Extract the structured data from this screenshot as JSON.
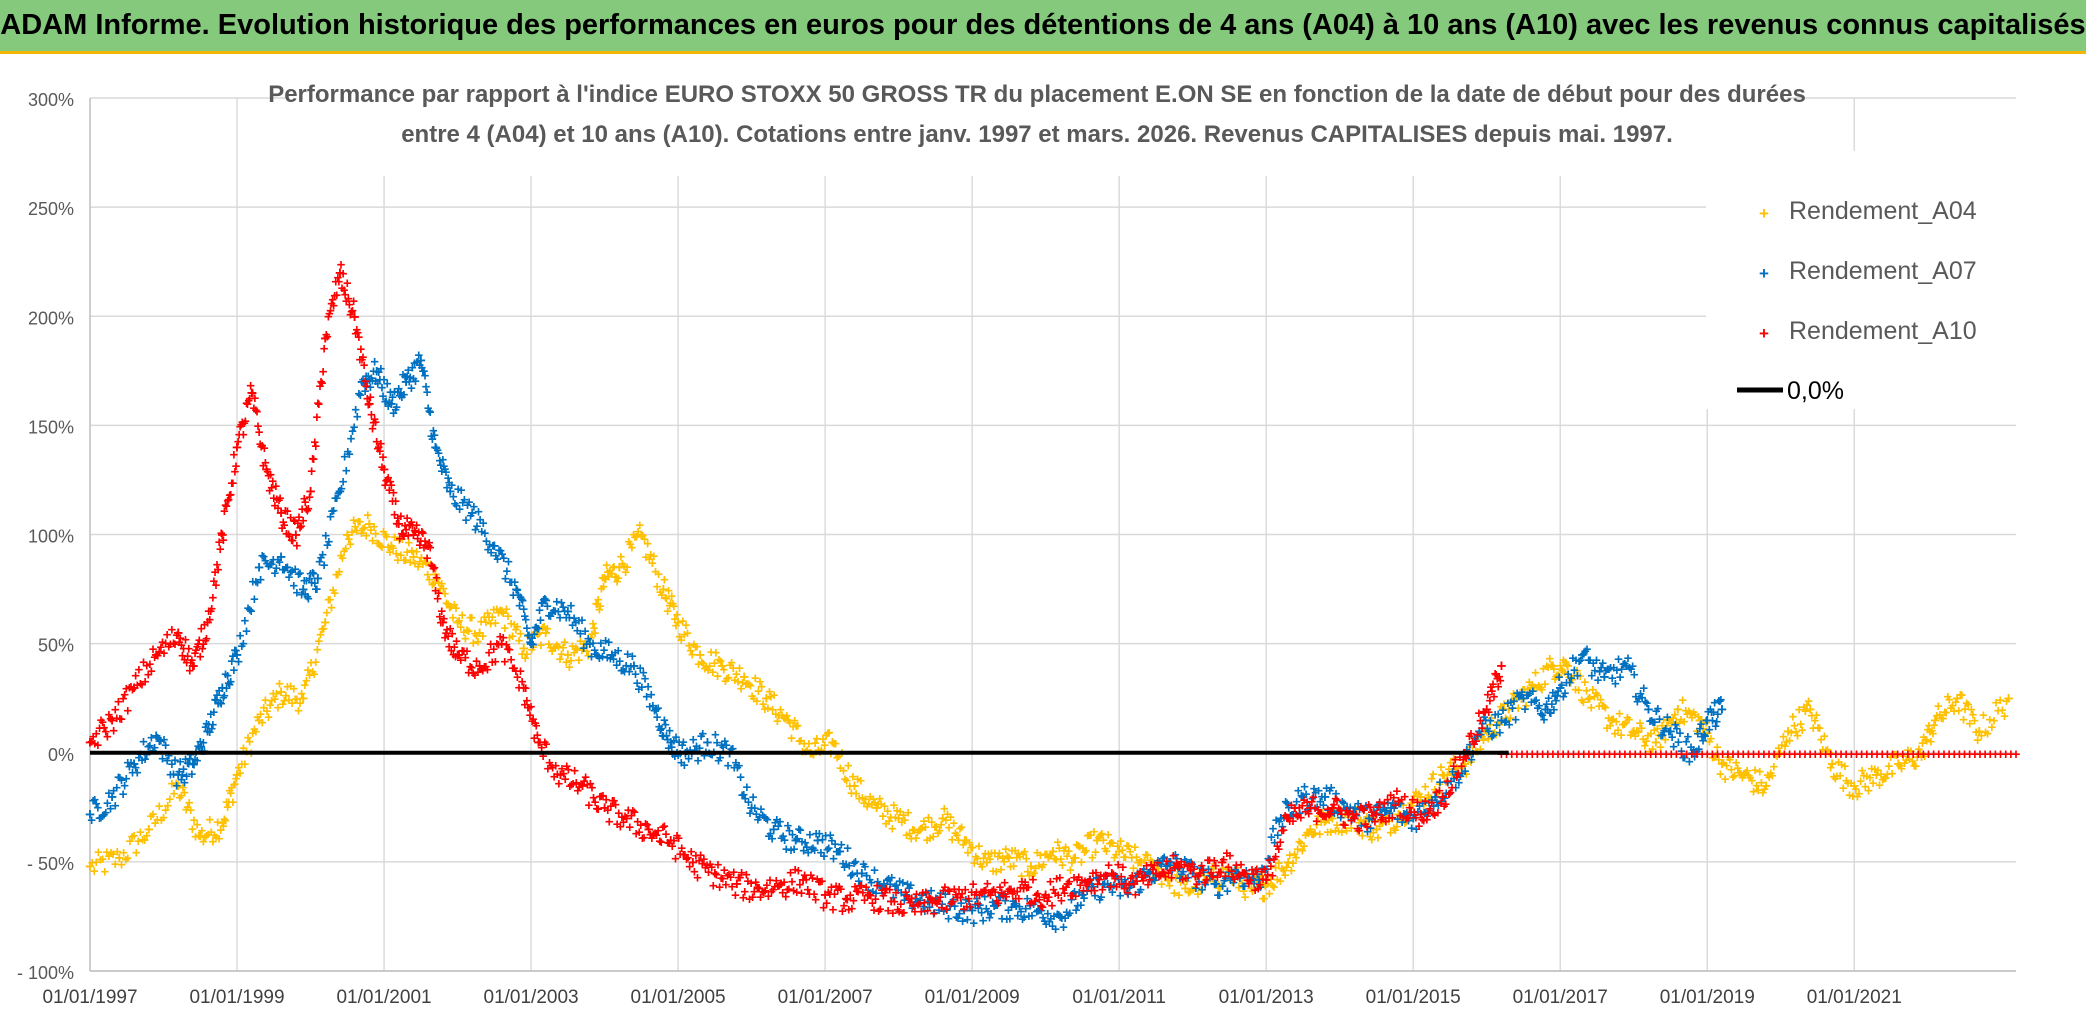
{
  "banner": {
    "title": "ADAM Informe. Evolution historique des performances en euros pour des détentions de 4 ans (A04) à 10 ans (A10) avec les revenus connus capitalisés"
  },
  "chart_data": {
    "type": "scatter",
    "title_line1": "Performance par rapport à l'indice EURO STOXX 50 GROSS TR  du placement E.ON SE en fonction de la date de début pour des durées",
    "title_line2": "entre 4 (A04) et 10 ans (A10). Cotations entre janv. 1997 et mars. 2026. Revenus CAPITALISES depuis mai. 1997.",
    "x_range": [
      1997.0,
      2023.2
    ],
    "ylim": [
      -100,
      300
    ],
    "y_ticks": [
      {
        "v": 300,
        "label": "300%"
      },
      {
        "v": 250,
        "label": "250%"
      },
      {
        "v": 200,
        "label": "200%"
      },
      {
        "v": 150,
        "label": "150%"
      },
      {
        "v": 100,
        "label": "100%"
      },
      {
        "v": 50,
        "label": "50%"
      },
      {
        "v": 0,
        "label": "0%"
      },
      {
        "v": -50,
        "label": "- 50%"
      },
      {
        "v": -100,
        "label": "- 100%"
      }
    ],
    "x_ticks": [
      {
        "v": 1997,
        "label": "01/01/1997"
      },
      {
        "v": 1999,
        "label": "01/01/1999"
      },
      {
        "v": 2001,
        "label": "01/01/2001"
      },
      {
        "v": 2003,
        "label": "01/01/2003"
      },
      {
        "v": 2005,
        "label": "01/01/2005"
      },
      {
        "v": 2007,
        "label": "01/01/2007"
      },
      {
        "v": 2009,
        "label": "01/01/2009"
      },
      {
        "v": 2011,
        "label": "01/01/2011"
      },
      {
        "v": 2013,
        "label": "01/01/2013"
      },
      {
        "v": 2015,
        "label": "01/01/2015"
      },
      {
        "v": 2017,
        "label": "01/01/2017"
      },
      {
        "v": 2019,
        "label": "01/01/2019"
      },
      {
        "v": 2021,
        "label": "01/01/2021"
      }
    ],
    "legend": {
      "position": "top-right"
    },
    "zero_line": {
      "name": "0,0%",
      "value": 0,
      "color": "#000000"
    },
    "series": [
      {
        "name": "Rendement_A04",
        "color": "#ffc000",
        "x": [
          1997.0,
          1997.4,
          1997.8,
          1998.2,
          1998.5,
          1998.8,
          1999.0,
          1999.3,
          1999.6,
          1999.9,
          2000.2,
          2000.5,
          2000.8,
          2001.1,
          2001.4,
          2001.7,
          2002.0,
          2002.3,
          2002.6,
          2002.9,
          2003.2,
          2003.5,
          2003.8,
          2004.0,
          2004.2,
          2004.5,
          2004.8,
          2005.0,
          2005.3,
          2005.6,
          2005.9,
          2006.2,
          2006.5,
          2006.8,
          2007.1,
          2007.4,
          2007.7,
          2008.0,
          2008.3,
          2008.6,
          2008.9,
          2009.2,
          2009.5,
          2009.8,
          2010.1,
          2010.4,
          2010.7,
          2011.0,
          2011.3,
          2011.6,
          2011.9,
          2012.2,
          2012.5,
          2012.8,
          2013.0,
          2013.3,
          2013.6,
          2013.9,
          2014.2,
          2014.5,
          2014.8,
          2015.1,
          2015.4,
          2015.7,
          2016.0,
          2016.3,
          2016.6,
          2016.9,
          2017.1,
          2017.4,
          2017.7,
          2018.0,
          2018.3,
          2018.6,
          2018.9,
          2019.2,
          2019.5,
          2019.8,
          2020.1,
          2020.4,
          2020.7,
          2021.0,
          2021.3,
          2021.6,
          2021.9,
          2022.1,
          2022.4,
          2022.7,
          2023.1
        ],
        "y": [
          -52,
          -48,
          -35,
          -15,
          -38,
          -32,
          -10,
          15,
          28,
          25,
          60,
          100,
          105,
          95,
          90,
          82,
          60,
          55,
          65,
          48,
          55,
          45,
          50,
          80,
          85,
          100,
          75,
          60,
          45,
          40,
          35,
          25,
          15,
          0,
          5,
          -15,
          -25,
          -30,
          -35,
          -30,
          -40,
          -50,
          -48,
          -52,
          -45,
          -48,
          -40,
          -45,
          -50,
          -55,
          -62,
          -58,
          -55,
          -62,
          -60,
          -50,
          -35,
          -30,
          -30,
          -35,
          -28,
          -20,
          -10,
          -5,
          10,
          20,
          30,
          40,
          40,
          25,
          15,
          10,
          5,
          20,
          15,
          -5,
          -10,
          -15,
          10,
          20,
          -5,
          -15,
          -10,
          -5,
          0,
          15,
          25,
          10,
          25
        ]
      },
      {
        "name": "Rendement_A07",
        "color": "#0070c0",
        "x": [
          1997.0,
          1997.3,
          1997.6,
          1997.9,
          1998.2,
          1998.4,
          1998.6,
          1998.8,
          1999.0,
          1999.3,
          1999.6,
          1999.9,
          2000.1,
          2000.4,
          2000.7,
          2000.9,
          2001.1,
          2001.3,
          2001.5,
          2001.7,
          2001.9,
          2002.2,
          2002.5,
          2002.8,
          2003.0,
          2003.2,
          2003.5,
          2003.8,
          2004.1,
          2004.4,
          2004.7,
          2004.9,
          2005.1,
          2005.4,
          2005.7,
          2006.0,
          2006.3,
          2006.6,
          2006.9,
          2007.2,
          2007.5,
          2007.8,
          2008.1,
          2008.4,
          2008.7,
          2009.0,
          2009.3,
          2009.6,
          2009.9,
          2010.2,
          2010.5,
          2010.8,
          2011.1,
          2011.4,
          2011.7,
          2012.0,
          2012.3,
          2012.6,
          2012.9,
          2013.2,
          2013.5,
          2013.8,
          2014.1,
          2014.4,
          2014.7,
          2015.0,
          2015.3,
          2015.6,
          2015.9,
          2016.2,
          2016.5,
          2016.8,
          2017.0,
          2017.3,
          2017.6,
          2017.9,
          2018.2,
          2018.5,
          2018.8,
          2019.0,
          2019.2
        ],
        "y": [
          -28,
          -20,
          -5,
          8,
          -10,
          -5,
          10,
          30,
          45,
          85,
          90,
          75,
          80,
          120,
          170,
          175,
          160,
          170,
          180,
          140,
          120,
          110,
          95,
          75,
          50,
          70,
          65,
          50,
          45,
          40,
          20,
          5,
          0,
          5,
          0,
          -25,
          -35,
          -40,
          -40,
          -45,
          -55,
          -60,
          -65,
          -68,
          -70,
          -72,
          -70,
          -70,
          -72,
          -75,
          -65,
          -60,
          -62,
          -55,
          -50,
          -55,
          -60,
          -55,
          -58,
          -30,
          -20,
          -20,
          -25,
          -30,
          -25,
          -30,
          -20,
          -10,
          10,
          15,
          25,
          20,
          30,
          45,
          35,
          40,
          20,
          10,
          0,
          15,
          20
        ]
      },
      {
        "name": "Rendement_A10",
        "color": "#ff0000",
        "x": [
          1997.0,
          1997.3,
          1997.6,
          1997.9,
          1998.2,
          1998.4,
          1998.6,
          1998.8,
          1999.0,
          1999.2,
          1999.4,
          1999.6,
          1999.8,
          2000.0,
          2000.2,
          2000.4,
          2000.6,
          2000.8,
          2001.0,
          2001.2,
          2001.4,
          2001.6,
          2001.8,
          2002.0,
          2002.3,
          2002.6,
          2002.9,
          2003.1,
          2003.4,
          2003.7,
          2004.0,
          2004.3,
          2004.6,
          2004.9,
          2005.2,
          2005.5,
          2005.8,
          2006.1,
          2006.4,
          2006.7,
          2007.0,
          2007.3,
          2007.6,
          2007.9,
          2008.2,
          2008.5,
          2008.8,
          2009.1,
          2009.4,
          2009.7,
          2010.0,
          2010.3,
          2010.6,
          2010.9,
          2011.2,
          2011.5,
          2011.8,
          2012.1,
          2012.4,
          2012.7,
          2013.0,
          2013.3,
          2013.6,
          2013.9,
          2014.2,
          2014.5,
          2014.8,
          2015.1,
          2015.4,
          2015.7,
          2016.0,
          2016.2
        ],
        "y": [
          5,
          15,
          30,
          45,
          55,
          40,
          60,
          100,
          140,
          165,
          130,
          110,
          100,
          120,
          190,
          220,
          200,
          160,
          130,
          105,
          100,
          95,
          60,
          45,
          40,
          50,
          30,
          5,
          -10,
          -15,
          -25,
          -30,
          -35,
          -40,
          -50,
          -55,
          -60,
          -62,
          -60,
          -58,
          -65,
          -67,
          -65,
          -68,
          -70,
          -68,
          -66,
          -65,
          -64,
          -62,
          -65,
          -60,
          -58,
          -55,
          -60,
          -55,
          -52,
          -55,
          -50,
          -55,
          -58,
          -30,
          -25,
          -25,
          -30,
          -28,
          -22,
          -28,
          -20,
          0,
          20,
          40
        ]
      }
    ]
  }
}
